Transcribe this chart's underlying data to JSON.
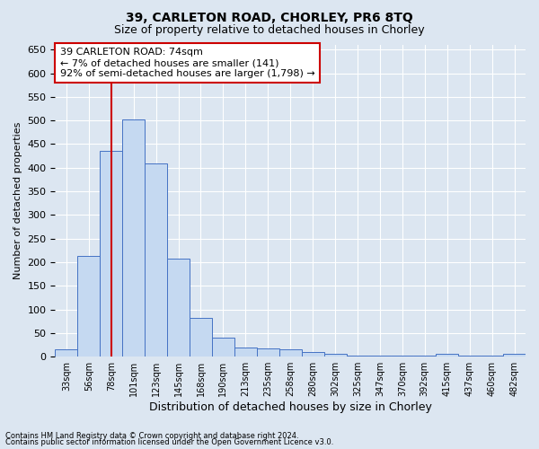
{
  "title": "39, CARLETON ROAD, CHORLEY, PR6 8TQ",
  "subtitle": "Size of property relative to detached houses in Chorley",
  "xlabel": "Distribution of detached houses by size in Chorley",
  "ylabel": "Number of detached properties",
  "categories": [
    "33sqm",
    "56sqm",
    "78sqm",
    "101sqm",
    "123sqm",
    "145sqm",
    "168sqm",
    "190sqm",
    "213sqm",
    "235sqm",
    "258sqm",
    "280sqm",
    "302sqm",
    "325sqm",
    "347sqm",
    "370sqm",
    "392sqm",
    "415sqm",
    "437sqm",
    "460sqm",
    "482sqm"
  ],
  "values": [
    15,
    213,
    435,
    503,
    410,
    207,
    83,
    40,
    20,
    18,
    15,
    10,
    6,
    3,
    3,
    3,
    3,
    6,
    3,
    3,
    6
  ],
  "bar_color": "#c5d9f1",
  "bar_edge_color": "#4472c4",
  "background_color": "#dce6f1",
  "plot_bg_color": "#dce6f1",
  "grid_color": "#ffffff",
  "vline_color": "#cc0000",
  "vline_x": 2,
  "annotation_line1": "39 CARLETON ROAD: 74sqm",
  "annotation_line2": "← 7% of detached houses are smaller (141)",
  "annotation_line3": "92% of semi-detached houses are larger (1,798) →",
  "annotation_box_color": "#ffffff",
  "annotation_box_edge": "#cc0000",
  "ylim": [
    0,
    660
  ],
  "yticks": [
    0,
    50,
    100,
    150,
    200,
    250,
    300,
    350,
    400,
    450,
    500,
    550,
    600,
    650
  ],
  "footnote1": "Contains HM Land Registry data © Crown copyright and database right 2024.",
  "footnote2": "Contains public sector information licensed under the Open Government Licence v3.0.",
  "title_fontsize": 10,
  "subtitle_fontsize": 9
}
